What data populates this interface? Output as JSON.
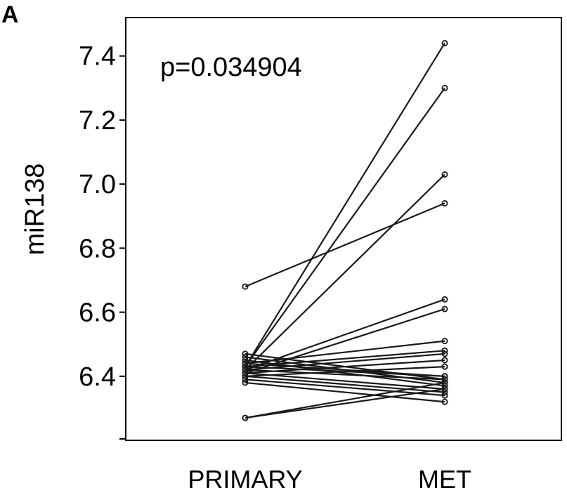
{
  "panel_label": "A",
  "chart_data": {
    "type": "line",
    "title": "",
    "xlabel": "",
    "ylabel": "miR138",
    "categories": [
      "PRIMARY",
      "MET"
    ],
    "ylim": [
      6.2,
      7.52
    ],
    "yticks": [
      6.4,
      6.6,
      6.8,
      7.0,
      7.2,
      7.4
    ],
    "ytick_labels": [
      "6.4",
      "6.6",
      "6.8",
      "7.0",
      "7.2",
      "7.4"
    ],
    "annotation": "p=0.034904",
    "grid": false,
    "legend": "none",
    "pairs": [
      {
        "values": [
          6.68,
          6.94
        ]
      },
      {
        "values": [
          6.43,
          7.44
        ]
      },
      {
        "values": [
          6.43,
          7.3
        ]
      },
      {
        "values": [
          6.42,
          7.03
        ]
      },
      {
        "values": [
          6.42,
          6.64
        ]
      },
      {
        "values": [
          6.41,
          6.61
        ]
      },
      {
        "values": [
          6.44,
          6.51
        ]
      },
      {
        "values": [
          6.43,
          6.48
        ]
      },
      {
        "values": [
          6.42,
          6.47
        ]
      },
      {
        "values": [
          6.41,
          6.45
        ]
      },
      {
        "values": [
          6.4,
          6.43
        ]
      },
      {
        "values": [
          6.43,
          6.4
        ]
      },
      {
        "values": [
          6.44,
          6.4
        ]
      },
      {
        "values": [
          6.42,
          6.39
        ]
      },
      {
        "values": [
          6.47,
          6.39
        ]
      },
      {
        "values": [
          6.46,
          6.38
        ]
      },
      {
        "values": [
          6.45,
          6.37
        ]
      },
      {
        "values": [
          6.41,
          6.36
        ]
      },
      {
        "values": [
          6.4,
          6.35
        ]
      },
      {
        "values": [
          6.39,
          6.34
        ]
      },
      {
        "values": [
          6.38,
          6.32
        ]
      },
      {
        "values": [
          6.27,
          6.38
        ]
      },
      {
        "values": [
          6.27,
          6.36
        ]
      }
    ]
  }
}
